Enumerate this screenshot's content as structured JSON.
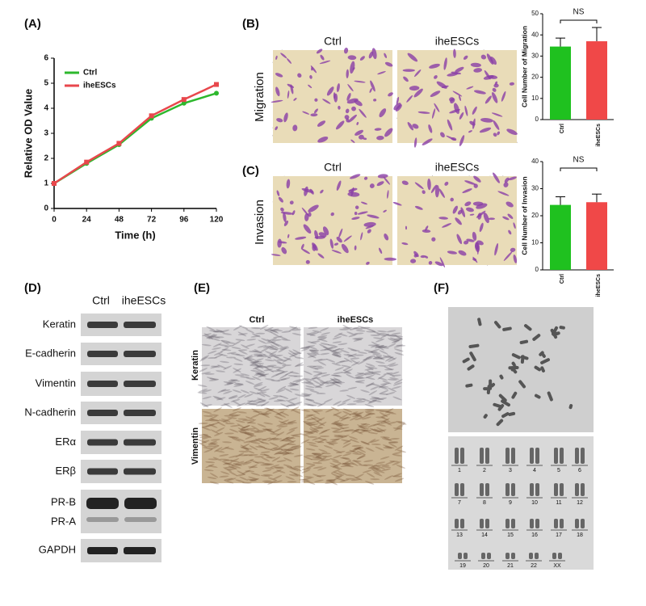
{
  "chart_data": [
    {
      "type": "line",
      "panel_label": "(A)",
      "x_label": "Time (h)",
      "y_label": "Relative OD Value",
      "x": [
        0,
        24,
        48,
        72,
        96,
        120
      ],
      "xlim": [
        0,
        120
      ],
      "xticks": [
        0,
        24,
        48,
        72,
        96,
        120
      ],
      "ylim": [
        0,
        6
      ],
      "yticks": [
        0,
        1,
        2,
        3,
        4,
        5,
        6
      ],
      "legend": "upper left",
      "series": [
        {
          "name": "Ctrl",
          "color": "#2db82d",
          "values": [
            1,
            1.8,
            2.55,
            3.6,
            4.2,
            4.6
          ]
        },
        {
          "name": "iheESCs",
          "color": "#e8474c",
          "values": [
            1,
            1.85,
            2.6,
            3.7,
            4.35,
            4.95
          ]
        }
      ]
    },
    {
      "type": "bar",
      "y_label": "Cell Number of Migration",
      "categories": [
        "Ctrl",
        "iheESCs"
      ],
      "values": [
        34.5,
        37
      ],
      "errors": [
        4,
        6.5
      ],
      "colors": [
        "#1fc11f",
        "#f04848"
      ],
      "ylim": [
        0,
        50
      ],
      "yticks": [
        0,
        10,
        20,
        30,
        40,
        50
      ],
      "annotation": "NS"
    },
    {
      "type": "bar",
      "y_label": "Cell Number of Invasion",
      "categories": [
        "Ctrl",
        "iheESCs"
      ],
      "values": [
        24,
        25
      ],
      "errors": [
        3,
        3
      ],
      "colors": [
        "#1fc11f",
        "#f04848"
      ],
      "ylim": [
        0,
        40
      ],
      "yticks": [
        0,
        10,
        20,
        30,
        40
      ],
      "annotation": "NS"
    }
  ],
  "migration_panel": {
    "panel_label": "(B)",
    "row_label": "Migration",
    "columns": [
      "Ctrl",
      "iheESCs"
    ]
  },
  "invasion_panel": {
    "panel_label": "(C)",
    "row_label": "Invasion",
    "columns": [
      "Ctrl",
      "iheESCs"
    ]
  },
  "western_blot": {
    "panel_label": "(D)",
    "columns": [
      "Ctrl",
      "iheESCs"
    ],
    "rows": [
      "Keratin",
      "E-cadherin",
      "Vimentin",
      "N-cadherin",
      "ERα",
      "ERβ",
      "PR-B",
      "PR-A",
      "GAPDH"
    ]
  },
  "ihc": {
    "panel_label": "(E)",
    "columns": [
      "Ctrl",
      "iheESCs"
    ],
    "rows": [
      "Keratin",
      "Vimentin"
    ]
  },
  "karyotype": {
    "panel_label": "(F)",
    "chromosome_labels": [
      "1",
      "2",
      "3",
      "4",
      "5",
      "6",
      "7",
      "8",
      "9",
      "10",
      "11",
      "12",
      "13",
      "14",
      "15",
      "16",
      "17",
      "18",
      "19",
      "20",
      "21",
      "22",
      "XX"
    ]
  }
}
